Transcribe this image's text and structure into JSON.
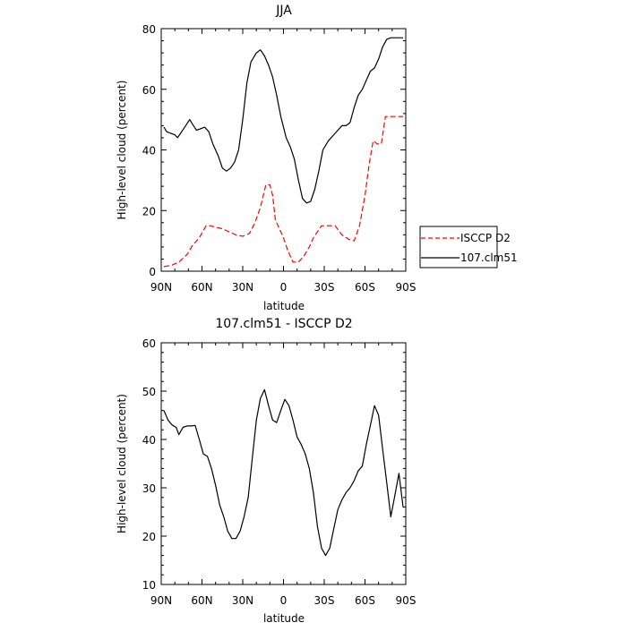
{
  "chart_data": [
    {
      "type": "line",
      "title": "JJA",
      "xlabel": "latitude",
      "ylabel": "High-level cloud (percent)",
      "x_ticks": [
        {
          "value": 90,
          "label": "90N"
        },
        {
          "value": 60,
          "label": "60N"
        },
        {
          "value": 30,
          "label": "30N"
        },
        {
          "value": 0,
          "label": "0"
        },
        {
          "value": -30,
          "label": "30S"
        },
        {
          "value": -60,
          "label": "60S"
        },
        {
          "value": -90,
          "label": "90S"
        }
      ],
      "xlim": [
        90,
        -90
      ],
      "ylim": [
        0,
        80
      ],
      "y_ticks": [
        0,
        20,
        40,
        60,
        80
      ],
      "grid": false,
      "legend_position": "right",
      "series": [
        {
          "name": "ISCCP D2",
          "color": "#ff0000",
          "dash": "dashed",
          "x": [
            88,
            82,
            77,
            71,
            67,
            62,
            57,
            54,
            50,
            45,
            40,
            35,
            30,
            25,
            21,
            17,
            13,
            10,
            8,
            6,
            3,
            0,
            -3,
            -7,
            -11,
            -15,
            -19,
            -22,
            -25,
            -28,
            -33,
            -38,
            -43,
            -48,
            -52,
            -56,
            -60,
            -63,
            -66,
            -69,
            -72,
            -75,
            -78,
            -81,
            -84,
            -86,
            -88
          ],
          "y": [
            1.5,
            2.0,
            3.0,
            5.5,
            8.5,
            11.0,
            15.0,
            15.0,
            14.5,
            14.0,
            13.0,
            12.0,
            11.5,
            12.5,
            16.0,
            21.0,
            28.5,
            28.5,
            25.0,
            17.0,
            14.0,
            11.0,
            7.0,
            3.0,
            3.0,
            5.0,
            8.0,
            11.0,
            13.0,
            15.0,
            15.0,
            15.0,
            12.0,
            10.5,
            10.0,
            15.0,
            25.0,
            35.0,
            43.0,
            42.0,
            42.0,
            51.0,
            51.0,
            51.0,
            51.0,
            51.0,
            51.0
          ]
        },
        {
          "name": "107.clm51",
          "color": "#000000",
          "dash": "solid",
          "x": [
            88,
            86,
            83,
            80,
            78,
            75,
            72,
            69,
            67,
            64,
            61,
            58,
            55,
            52,
            48,
            45,
            42,
            39,
            36,
            33,
            30,
            27,
            24,
            20,
            17,
            14,
            11,
            8,
            5,
            2,
            0,
            -2,
            -5,
            -8,
            -11,
            -14,
            -17,
            -20,
            -23,
            -26,
            -29,
            -33,
            -37,
            -40,
            -43,
            -46,
            -49,
            -52,
            -55,
            -58,
            -61,
            -64,
            -67,
            -70,
            -73,
            -76,
            -79,
            -82,
            -85,
            -88
          ],
          "y": [
            47.5,
            46.0,
            45.5,
            45.0,
            44.0,
            46.0,
            48.0,
            50.0,
            48.5,
            46.5,
            47.0,
            47.5,
            46.0,
            42.0,
            38.0,
            34.0,
            33.0,
            34.0,
            36.0,
            40.0,
            50.0,
            62.0,
            69.0,
            72.0,
            73.0,
            71.0,
            68.0,
            64.0,
            58.0,
            51.0,
            47.5,
            44.0,
            41.0,
            37.0,
            30.0,
            24.0,
            22.5,
            23.0,
            27.0,
            33.0,
            40.0,
            43.0,
            45.0,
            46.5,
            48.0,
            48.0,
            49.0,
            54.0,
            58.0,
            60.0,
            63.0,
            66.0,
            67.0,
            70.0,
            74.0,
            76.5,
            77.0,
            77.0,
            77.0,
            77.0
          ]
        }
      ]
    },
    {
      "type": "line",
      "title": "107.clm51 - ISCCP D2",
      "xlabel": "latitude",
      "ylabel": "High-level cloud (percent)",
      "x_ticks": [
        {
          "value": 90,
          "label": "90N"
        },
        {
          "value": 60,
          "label": "60N"
        },
        {
          "value": 30,
          "label": "30N"
        },
        {
          "value": 0,
          "label": "0"
        },
        {
          "value": -30,
          "label": "30S"
        },
        {
          "value": -60,
          "label": "60S"
        },
        {
          "value": -90,
          "label": "90S"
        }
      ],
      "xlim": [
        90,
        -90
      ],
      "ylim": [
        10,
        60
      ],
      "y_ticks": [
        10,
        20,
        30,
        40,
        50,
        60
      ],
      "grid": false,
      "series": [
        {
          "name": "",
          "color": "#000000",
          "dash": "solid",
          "x": [
            88,
            85,
            82,
            79,
            77,
            74,
            71,
            68,
            65,
            62,
            59,
            56,
            53,
            50,
            47,
            44,
            41,
            38,
            35,
            32,
            29,
            26,
            23,
            20,
            17,
            14,
            11,
            8,
            5,
            2,
            -1,
            -4,
            -7,
            -10,
            -13,
            -16,
            -19,
            -22,
            -25,
            -28,
            -31,
            -34,
            -37,
            -40,
            -43,
            -46,
            -49,
            -52,
            -55,
            -58,
            -61,
            -64,
            -67,
            -70,
            -73,
            -76,
            -79,
            -82,
            -85,
            -88
          ],
          "y": [
            46.0,
            44.0,
            43.0,
            42.5,
            41.0,
            42.5,
            42.8,
            42.8,
            42.9,
            40.0,
            37.0,
            36.5,
            34.0,
            30.5,
            26.5,
            24.0,
            21.0,
            19.5,
            19.5,
            21.0,
            24.0,
            28.0,
            36.0,
            44.0,
            48.5,
            50.3,
            47.0,
            44.0,
            43.5,
            46.0,
            48.3,
            47.0,
            44.0,
            40.5,
            39.0,
            37.0,
            34.0,
            29.0,
            22.0,
            17.5,
            16.0,
            17.5,
            21.5,
            25.5,
            27.5,
            29.0,
            30.0,
            31.5,
            33.5,
            34.5,
            39.0,
            43.0,
            47.0,
            45.0,
            38.0,
            31.0,
            24.0,
            28.5,
            33.0,
            26.0
          ]
        }
      ]
    }
  ]
}
